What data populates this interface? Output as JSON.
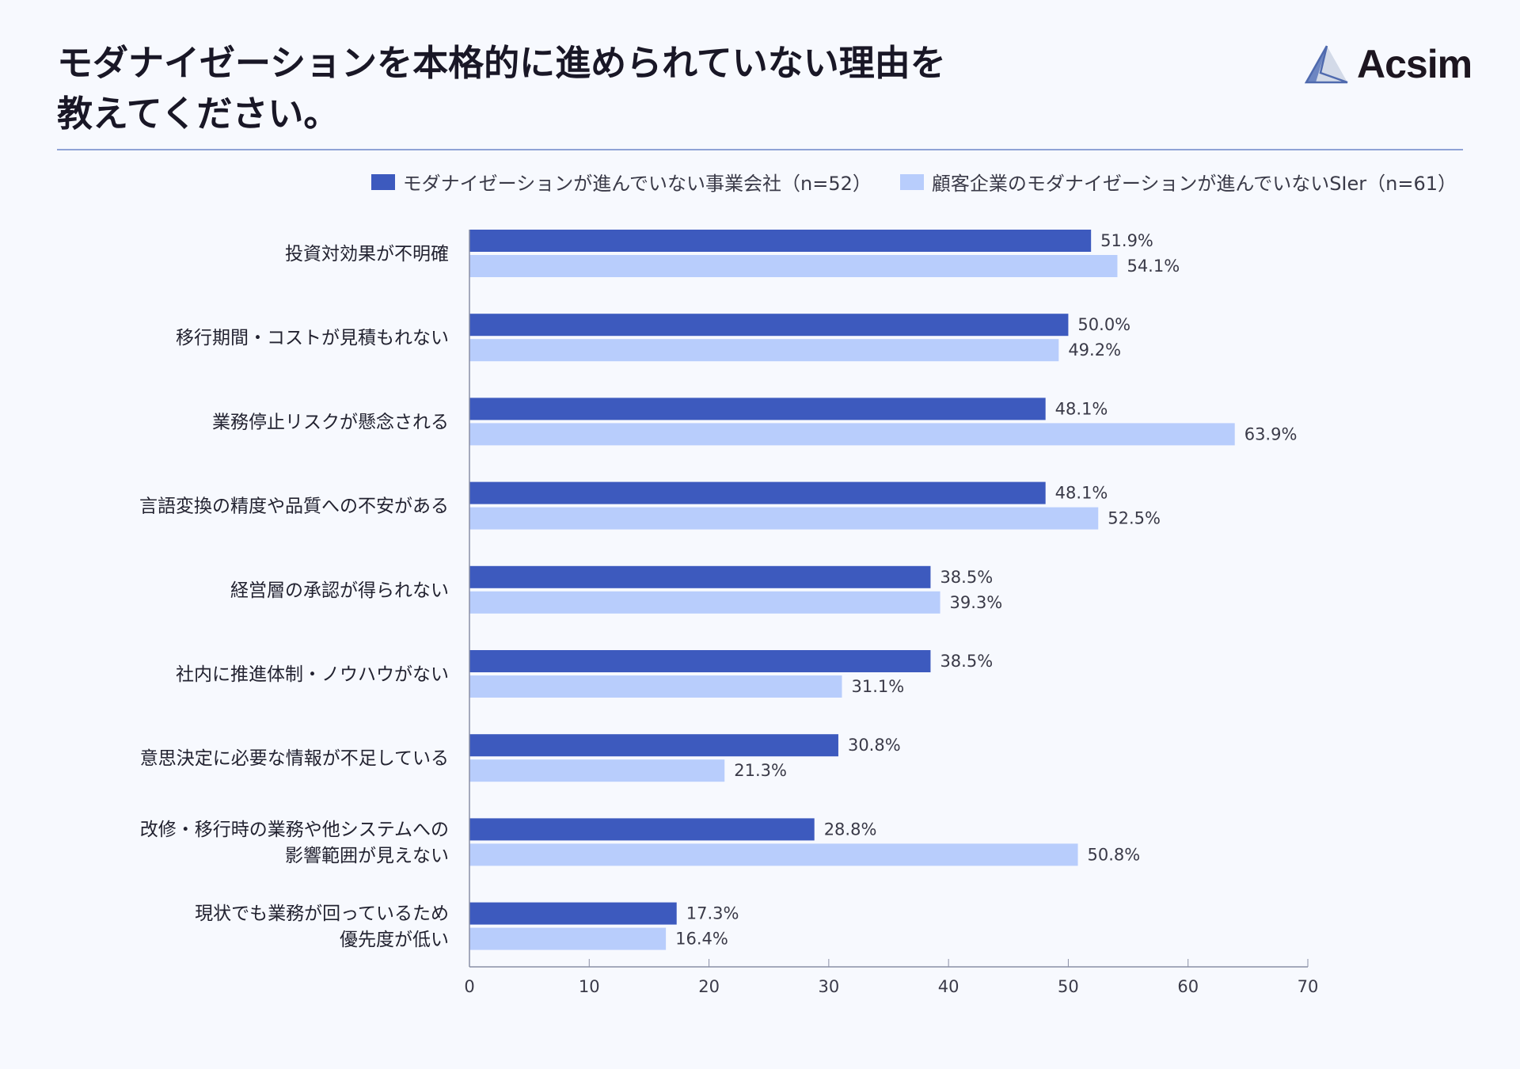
{
  "title_lines": [
    "モダナイゼーションを本格的に進められていない理由を",
    "教えてください。"
  ],
  "logo": {
    "text": "Acsim"
  },
  "colors": {
    "series1": "#3d5abe",
    "series2": "#b8cdfc",
    "axis": "#8a8fa6",
    "divider": "#8fa3d6",
    "background": "#f7f9fe"
  },
  "chart_data": {
    "type": "bar",
    "orientation": "horizontal",
    "categories": [
      [
        "投資対効果が不明確"
      ],
      [
        "移行期間・コストが見積もれない"
      ],
      [
        "業務停止リスクが懸念される"
      ],
      [
        "言語変換の精度や品質への不安がある"
      ],
      [
        "経営層の承認が得られない"
      ],
      [
        "社内に推進体制・ノウハウがない"
      ],
      [
        "意思決定に必要な情報が不足している"
      ],
      [
        "改修・移行時の業務や他システムへの",
        "影響範囲が見えない"
      ],
      [
        "現状でも業務が回っているため",
        "優先度が低い"
      ]
    ],
    "series": [
      {
        "name": "モダナイゼーションが進んでいない事業会社（n=52）",
        "values": [
          51.9,
          50.0,
          48.1,
          48.1,
          38.5,
          38.5,
          30.8,
          28.8,
          17.3
        ],
        "labels": [
          "51.9%",
          "50.0%",
          "48.1%",
          "48.1%",
          "38.5%",
          "38.5%",
          "30.8%",
          "28.8%",
          "17.3%"
        ]
      },
      {
        "name": "顧客企業のモダナイゼーションが進んでいないSIer（n=61）",
        "values": [
          54.1,
          49.2,
          63.9,
          52.5,
          39.3,
          31.1,
          21.3,
          50.8,
          16.4
        ],
        "labels": [
          "54.1%",
          "49.2%",
          "63.9%",
          "52.5%",
          "39.3%",
          "31.1%",
          "21.3%",
          "50.8%",
          "16.4%"
        ]
      }
    ],
    "xlim": [
      0,
      70
    ],
    "xticks": [
      "0",
      "10",
      "20",
      "30",
      "40",
      "50",
      "60",
      "70"
    ],
    "legend_position": "top-right",
    "grid": false
  }
}
